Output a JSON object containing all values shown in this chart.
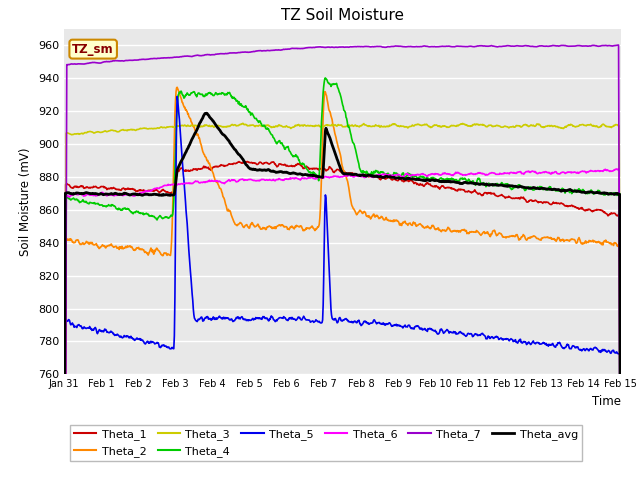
{
  "title": "TZ Soil Moisture",
  "ylabel": "Soil Moisture (mV)",
  "xlabel": "Time",
  "legend_label": "TZ_sm",
  "ylim": [
    760,
    970
  ],
  "yticks": [
    760,
    780,
    800,
    820,
    840,
    860,
    880,
    900,
    920,
    940,
    960
  ],
  "x_tick_labels": [
    "Jan 31",
    "Feb 1",
    "Feb 2",
    "Feb 3",
    "Feb 4",
    "Feb 5",
    "Feb 6",
    "Feb 7",
    "Feb 8",
    "Feb 9",
    "Feb 10",
    "Feb 11",
    "Feb 12",
    "Feb 13",
    "Feb 14",
    "Feb 15"
  ],
  "colors": {
    "Theta_1": "#cc0000",
    "Theta_2": "#ff8800",
    "Theta_3": "#cccc00",
    "Theta_4": "#00cc00",
    "Theta_5": "#0000ee",
    "Theta_6": "#ff00ff",
    "Theta_7": "#9900cc",
    "Theta_avg": "#000000"
  },
  "bg_color": "#e8e8e8",
  "legend_box_color": "#ffffcc",
  "legend_box_border": "#cc8800"
}
